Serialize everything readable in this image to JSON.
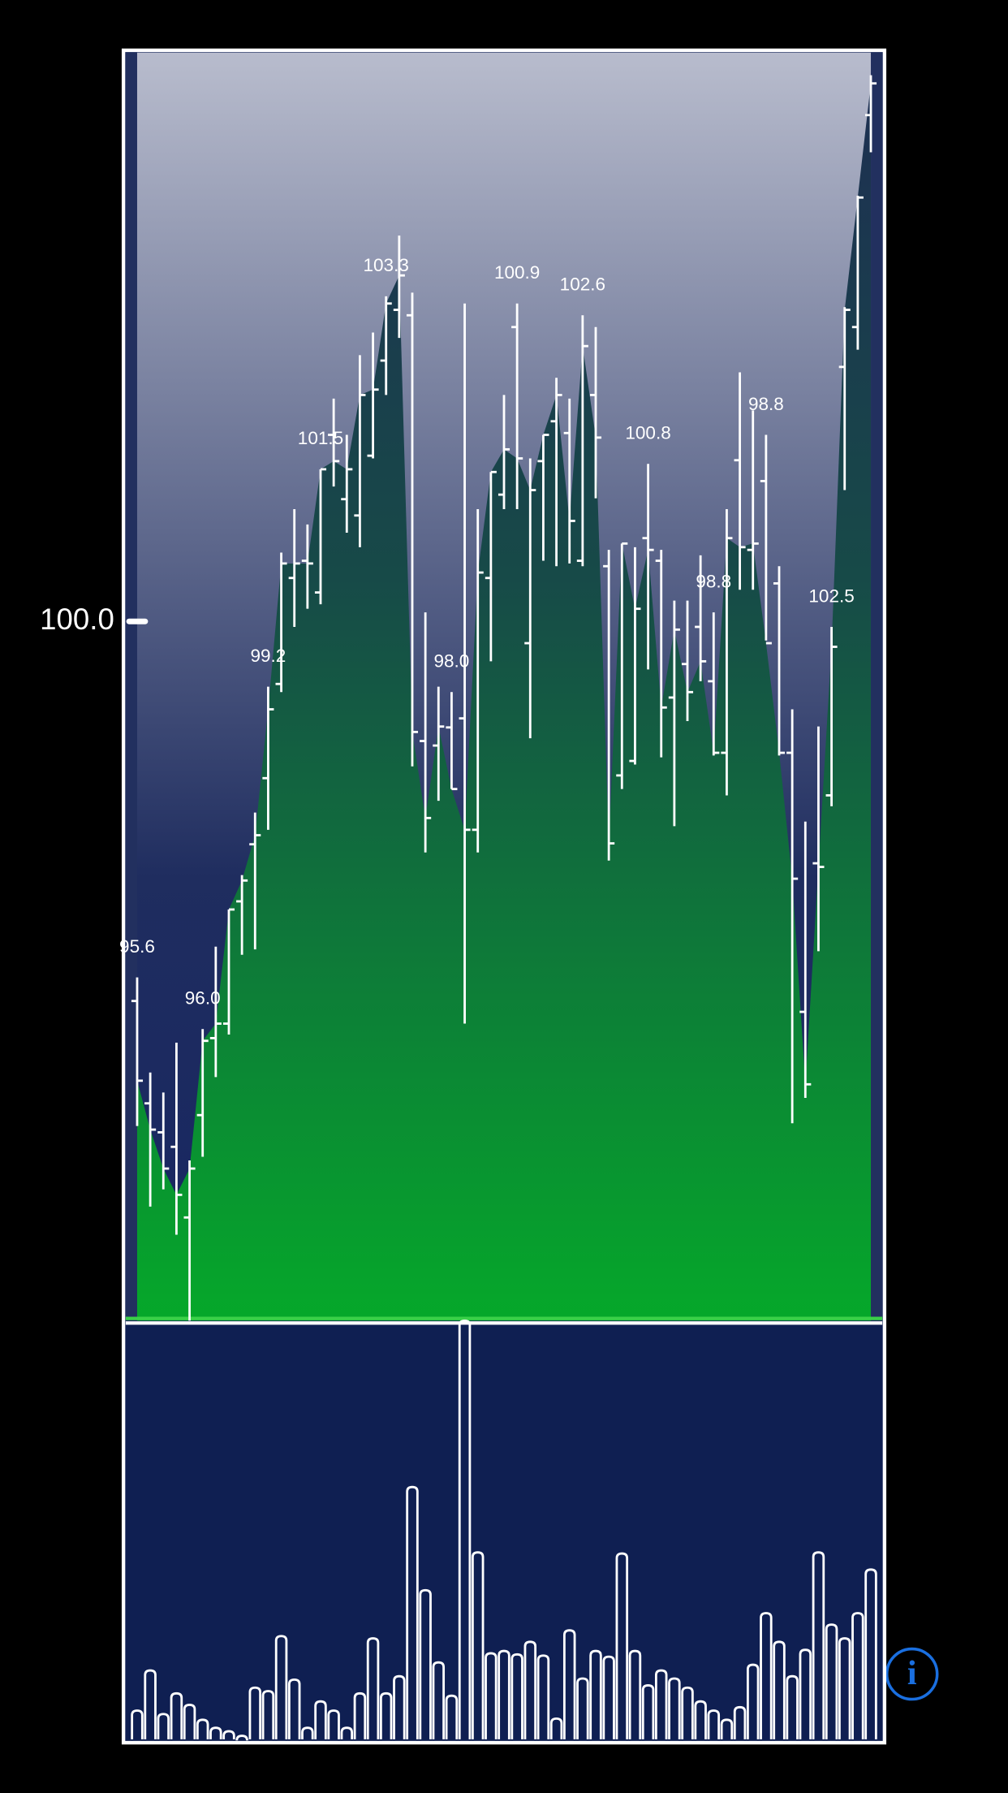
{
  "chart_data": {
    "type": "ohlc",
    "ylim": [
      92.28,
      106.28
    ],
    "yticks": [
      {
        "value": 100,
        "label": "100.0"
      }
    ],
    "open": [
      95.81,
      94.68,
      94.36,
      94.2,
      93.42,
      94.55,
      95.4,
      95.56,
      96.91,
      97.54,
      98.27,
      99.31,
      100.48,
      100.67,
      100.32,
      102.06,
      101.35,
      101.17,
      101.83,
      102.88,
      103.44,
      103.38,
      98.68,
      98.63,
      98.83,
      98.93,
      97.7,
      100.48,
      101.4,
      103.25,
      99.76,
      101.77,
      102.21,
      102.08,
      100.67,
      102.5,
      100.61,
      98.3,
      98.46,
      100.92,
      100.67,
      99.16,
      99.53,
      99.94,
      99.34,
      98.55,
      101.78,
      100.79,
      101.55,
      100.42,
      98.55,
      95.69,
      97.33,
      98.08,
      102.81,
      103.25,
      105.59
    ],
    "high": [
      96.07,
      95.02,
      94.8,
      95.35,
      94.05,
      95.5,
      96.41,
      96.82,
      97.2,
      97.89,
      99.28,
      100.76,
      101.24,
      101.07,
      101.68,
      102.46,
      102.06,
      102.94,
      103.19,
      103.59,
      104.26,
      103.63,
      100.1,
      99.28,
      99.22,
      103.51,
      101.24,
      101.65,
      102.5,
      103.51,
      101.8,
      102.06,
      102.69,
      102.46,
      103.38,
      103.25,
      100.79,
      100.86,
      100.82,
      101.74,
      100.79,
      100.23,
      100.23,
      100.73,
      100.1,
      101.24,
      102.75,
      102.33,
      102.06,
      100.61,
      99.03,
      97.79,
      98.84,
      99.94,
      103.47,
      104.7,
      106.03
    ],
    "low": [
      94.43,
      93.54,
      93.73,
      93.23,
      92.28,
      94.09,
      94.97,
      95.44,
      96.32,
      96.38,
      97.7,
      99.22,
      99.94,
      100.14,
      100.19,
      101.49,
      100.98,
      100.82,
      101.8,
      102.5,
      103.13,
      98.4,
      97.45,
      98.02,
      98.15,
      95.56,
      97.45,
      99.56,
      101.24,
      101.24,
      98.71,
      100.67,
      100.61,
      100.64,
      100.61,
      101.36,
      97.36,
      98.15,
      98.42,
      99.47,
      98.5,
      97.74,
      98.9,
      99.34,
      98.52,
      98.08,
      100.35,
      100.35,
      99.79,
      98.52,
      94.46,
      94.74,
      96.36,
      97.96,
      101.45,
      103.0,
      105.18
    ],
    "close": [
      94.93,
      94.39,
      93.96,
      93.67,
      93.96,
      95.37,
      95.56,
      96.82,
      97.14,
      97.64,
      99.03,
      100.64,
      100.64,
      100.64,
      101.68,
      101.77,
      101.68,
      102.5,
      102.56,
      103.51,
      103.82,
      98.78,
      97.83,
      98.84,
      98.15,
      97.7,
      100.54,
      101.65,
      101.9,
      101.8,
      101.45,
      102.06,
      102.5,
      101.11,
      103.04,
      102.03,
      97.55,
      100.86,
      100.14,
      100.79,
      99.05,
      99.91,
      99.22,
      99.56,
      98.55,
      100.92,
      100.82,
      100.86,
      99.76,
      98.55,
      97.16,
      94.89,
      97.29,
      99.72,
      103.44,
      104.68,
      105.94
    ],
    "annotations": [
      "95.6",
      null,
      null,
      null,
      null,
      "96.0",
      null,
      null,
      null,
      null,
      "99.2",
      null,
      null,
      null,
      "101.5",
      null,
      null,
      null,
      null,
      "103.3",
      null,
      null,
      null,
      null,
      "98.0",
      null,
      null,
      null,
      null,
      "100.9",
      null,
      null,
      null,
      null,
      "102.6",
      null,
      null,
      null,
      null,
      "100.8",
      null,
      null,
      null,
      null,
      "98.8",
      null,
      null,
      null,
      "98.8",
      null,
      null,
      null,
      null,
      "102.5",
      null,
      null,
      null
    ],
    "volume": [
      25,
      60,
      22,
      40,
      30,
      17,
      10,
      7,
      3,
      45,
      42,
      90,
      52,
      10,
      33,
      25,
      10,
      40,
      88,
      40,
      55,
      220,
      130,
      67,
      38,
      365,
      163,
      75,
      77,
      74,
      85,
      73,
      18,
      95,
      53,
      77,
      72,
      162,
      77,
      47,
      60,
      53,
      45,
      33,
      25,
      17,
      28,
      65,
      110,
      85,
      55,
      78,
      163,
      100,
      88,
      110,
      148
    ],
    "volume_ylim": [
      0,
      365
    ]
  }
}
